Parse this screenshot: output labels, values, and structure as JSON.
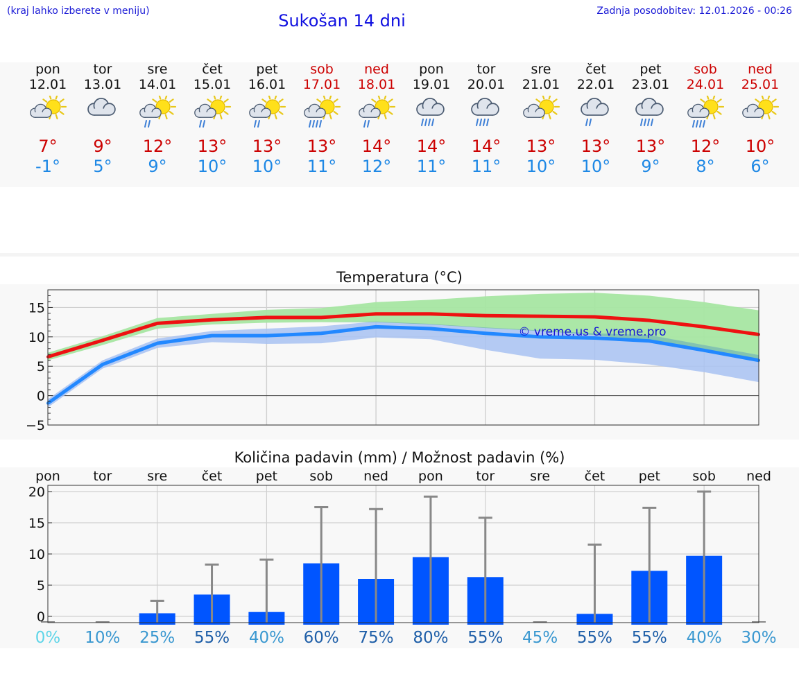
{
  "header": {
    "hint": "(kraj lahko izberete v meniju)",
    "title": "Sukošan 14 dni",
    "updated": "Zadnja posodobitev: 12.01.2026 - 00:26"
  },
  "days": [
    {
      "name": "pon",
      "date": "12.01",
      "weekend": false,
      "icon": "sun-cloud",
      "tmax": "7°",
      "tmin": "-1°"
    },
    {
      "name": "tor",
      "date": "13.01",
      "weekend": false,
      "icon": "cloud",
      "tmax": "9°",
      "tmin": "5°"
    },
    {
      "name": "sre",
      "date": "14.01",
      "weekend": false,
      "icon": "sun-cloud-rain",
      "tmax": "12°",
      "tmin": "9°"
    },
    {
      "name": "čet",
      "date": "15.01",
      "weekend": false,
      "icon": "sun-cloud-rain",
      "tmax": "13°",
      "tmin": "10°"
    },
    {
      "name": "pet",
      "date": "16.01",
      "weekend": false,
      "icon": "sun-cloud-rain",
      "tmax": "13°",
      "tmin": "10°"
    },
    {
      "name": "sob",
      "date": "17.01",
      "weekend": true,
      "icon": "sun-cloud-heavy-rain",
      "tmax": "13°",
      "tmin": "11°"
    },
    {
      "name": "ned",
      "date": "18.01",
      "weekend": true,
      "icon": "sun-cloud-rain",
      "tmax": "14°",
      "tmin": "12°"
    },
    {
      "name": "pon",
      "date": "19.01",
      "weekend": false,
      "icon": "cloud-heavy-rain",
      "tmax": "14°",
      "tmin": "11°"
    },
    {
      "name": "tor",
      "date": "20.01",
      "weekend": false,
      "icon": "cloud-heavy-rain",
      "tmax": "14°",
      "tmin": "11°"
    },
    {
      "name": "sre",
      "date": "21.01",
      "weekend": false,
      "icon": "sun-cloud",
      "tmax": "13°",
      "tmin": "10°"
    },
    {
      "name": "čet",
      "date": "22.01",
      "weekend": false,
      "icon": "cloud-rain",
      "tmax": "13°",
      "tmin": "10°"
    },
    {
      "name": "pet",
      "date": "23.01",
      "weekend": false,
      "icon": "cloud-heavy-rain",
      "tmax": "13°",
      "tmin": "9°"
    },
    {
      "name": "sob",
      "date": "24.01",
      "weekend": true,
      "icon": "sun-cloud-heavy-rain",
      "tmax": "12°",
      "tmin": "8°"
    },
    {
      "name": "ned",
      "date": "25.01",
      "weekend": true,
      "icon": "sun-cloud",
      "tmax": "10°",
      "tmin": "6°"
    }
  ],
  "colors": {
    "max_line": "#ee1111",
    "min_line": "#2288ff",
    "max_band": "#a6e6a2",
    "min_band": "#a8c2f2",
    "overlap": "#7dc3a6",
    "bar": "#0055ff",
    "error": "#888888",
    "watermark": "#1515d5"
  },
  "chart_data": [
    {
      "type": "line",
      "title": "Temperatura (°C)",
      "ylim": [
        -5,
        18
      ],
      "yticks": [
        -5,
        0,
        5,
        10,
        15
      ],
      "ytick_labels": [
        "−5",
        "0",
        "5",
        "10",
        "15"
      ],
      "x": [
        0,
        1,
        2,
        3,
        4,
        5,
        6,
        7,
        8,
        9,
        10,
        11,
        12,
        13
      ],
      "series": [
        {
          "name": "max",
          "values": [
            6.6,
            9.4,
            12.3,
            12.9,
            13.3,
            13.3,
            13.9,
            13.9,
            13.6,
            13.5,
            13.4,
            12.8,
            11.7,
            10.4
          ]
        },
        {
          "name": "min",
          "values": [
            -1.3,
            5.3,
            8.9,
            10.2,
            10.2,
            10.6,
            11.7,
            11.4,
            10.6,
            10.0,
            9.8,
            9.3,
            7.7,
            6.0
          ]
        }
      ],
      "bands": [
        {
          "name": "max_range",
          "upper": [
            7.3,
            10.1,
            13.2,
            13.9,
            14.6,
            14.9,
            15.9,
            16.3,
            16.9,
            17.3,
            17.5,
            17.0,
            15.9,
            14.5
          ],
          "lower": [
            6.0,
            8.6,
            11.4,
            12.1,
            12.4,
            12.5,
            12.5,
            12.1,
            11.5,
            11.0,
            10.3,
            9.1,
            7.7,
            5.9
          ]
        },
        {
          "name": "min_range",
          "upper": [
            -0.6,
            6.0,
            9.7,
            11.0,
            11.4,
            11.8,
            12.6,
            12.2,
            11.6,
            11.1,
            10.6,
            10.3,
            8.6,
            6.9
          ],
          "lower": [
            -2.0,
            4.6,
            8.1,
            9.1,
            8.8,
            8.9,
            9.9,
            9.6,
            7.8,
            6.3,
            6.1,
            5.3,
            4.0,
            2.3
          ]
        }
      ],
      "watermark": "© vreme.us & vreme.pro"
    },
    {
      "type": "bar",
      "title": "Količina padavin (mm) / Možnost padavin (%)",
      "categories": [
        "pon",
        "tor",
        "sre",
        "čet",
        "pet",
        "sob",
        "ned",
        "pon",
        "tor",
        "sre",
        "čet",
        "pet",
        "sob",
        "ned"
      ],
      "values": [
        0,
        0,
        0.5,
        3.5,
        0.7,
        8.5,
        6.0,
        9.5,
        6.3,
        0,
        0.4,
        7.3,
        9.7,
        0
      ],
      "error_max": [
        0,
        0,
        2.5,
        8.3,
        9.1,
        17.5,
        17.2,
        19.2,
        15.8,
        0,
        11.5,
        17.4,
        20.0,
        0
      ],
      "ylim": [
        -1,
        21
      ],
      "yticks": [
        0,
        5,
        10,
        15,
        20
      ],
      "probability": [
        "0%",
        "10%",
        "25%",
        "55%",
        "40%",
        "60%",
        "75%",
        "80%",
        "55%",
        "45%",
        "55%",
        "55%",
        "40%",
        "30%"
      ],
      "probability_colors": [
        "#5fd5e8",
        "#3a98d0",
        "#3a98d0",
        "#1f5fa8",
        "#3a98d0",
        "#1f5fa8",
        "#1f5fa8",
        "#1f5fa8",
        "#1f5fa8",
        "#3a98d0",
        "#1f5fa8",
        "#1f5fa8",
        "#3a98d0",
        "#3a98d0"
      ]
    }
  ]
}
